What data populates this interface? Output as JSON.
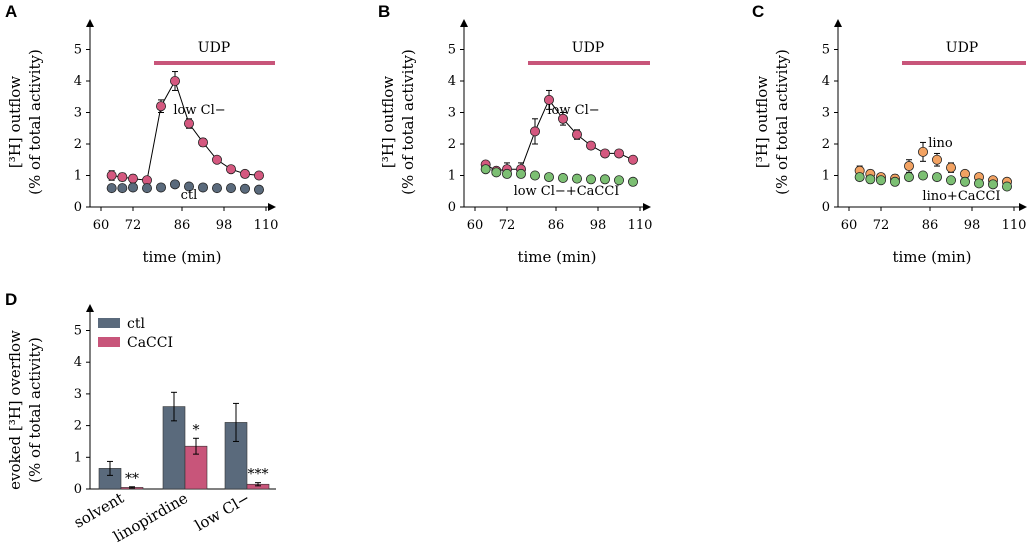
{
  "chart_data": [
    {
      "panel": "A",
      "type": "line",
      "xlabel": "time (min)",
      "ylabel_line1": "[³H] outflow",
      "ylabel_line2": "(% of total activity)",
      "x_ticks": [
        "60",
        "72",
        "86",
        "98",
        "110"
      ],
      "y_ticks": [
        "0",
        "1",
        "2",
        "3",
        "4",
        "5"
      ],
      "xlim": [
        58,
        114
      ],
      "ylim": [
        0,
        5.5
      ],
      "bar_label": "UDP",
      "bar_range": [
        76,
        114
      ],
      "bar_color": "#c8557a",
      "series": [
        {
          "name": "low Cl−",
          "color": "#d4587f",
          "x": [
            64,
            68,
            72,
            76,
            80,
            84,
            88,
            92,
            96,
            100,
            104,
            108
          ],
          "y": [
            1.0,
            0.95,
            0.9,
            0.85,
            3.2,
            4.0,
            2.65,
            2.05,
            1.5,
            1.2,
            1.05,
            1.0
          ],
          "err": [
            0.15,
            0.12,
            0.12,
            0.1,
            0.2,
            0.3,
            0.15,
            0.12,
            0.1,
            0.1,
            0.1,
            0.1
          ]
        },
        {
          "name": "ctl",
          "color": "#5a6a7c",
          "x": [
            64,
            68,
            72,
            76,
            80,
            84,
            88,
            92,
            96,
            100,
            104,
            108
          ],
          "y": [
            0.6,
            0.6,
            0.62,
            0.6,
            0.62,
            0.72,
            0.65,
            0.62,
            0.6,
            0.6,
            0.58,
            0.55
          ],
          "err": [
            0.05,
            0.05,
            0.05,
            0.05,
            0.05,
            0.05,
            0.05,
            0.05,
            0.05,
            0.05,
            0.05,
            0.05
          ]
        }
      ],
      "annotations": [
        {
          "text": "low Cl−",
          "x": 91,
          "y": 2.95
        },
        {
          "text": "ctl",
          "x": 88,
          "y": 0.25
        }
      ]
    },
    {
      "panel": "B",
      "type": "line",
      "xlabel": "time (min)",
      "ylabel_line1": "[³H] outflow",
      "ylabel_line2": "(% of total activity)",
      "x_ticks": [
        "60",
        "72",
        "86",
        "98",
        "110"
      ],
      "y_ticks": [
        "0",
        "1",
        "2",
        "3",
        "4",
        "5"
      ],
      "xlim": [
        58,
        114
      ],
      "ylim": [
        0,
        5.5
      ],
      "bar_label": "UDP",
      "bar_range": [
        76,
        114
      ],
      "bar_color": "#c8557a",
      "series": [
        {
          "name": "low Cl−",
          "color": "#d4587f",
          "x": [
            64,
            68,
            72,
            76,
            80,
            84,
            88,
            92,
            96,
            100,
            104,
            108
          ],
          "y": [
            1.35,
            1.15,
            1.2,
            1.2,
            2.4,
            3.4,
            2.8,
            2.3,
            1.95,
            1.7,
            1.7,
            1.5
          ],
          "err": [
            0.1,
            0.1,
            0.2,
            0.2,
            0.4,
            0.3,
            0.2,
            0.15,
            0.1,
            0.1,
            0.1,
            0.08
          ]
        },
        {
          "name": "low Cl−+CaCCI",
          "color": "#7cbf73",
          "x": [
            64,
            68,
            72,
            76,
            80,
            84,
            88,
            92,
            96,
            100,
            104,
            108
          ],
          "y": [
            1.2,
            1.1,
            1.05,
            1.05,
            1.0,
            0.95,
            0.92,
            0.9,
            0.88,
            0.88,
            0.85,
            0.8
          ],
          "err": [
            0.1,
            0.1,
            0.1,
            0.1,
            0.08,
            0.08,
            0.08,
            0.08,
            0.08,
            0.08,
            0.08,
            0.08
          ]
        }
      ],
      "annotations": [
        {
          "text": "low Cl−",
          "x": 91,
          "y": 2.95
        },
        {
          "text": "low Cl−+CaCCI",
          "x": 89,
          "y": 0.38
        }
      ]
    },
    {
      "panel": "C",
      "type": "line",
      "xlabel": "time (min)",
      "ylabel_line1": "[³H] outflow",
      "ylabel_line2": "(% of total activity)",
      "x_ticks": [
        "60",
        "72",
        "86",
        "98",
        "110"
      ],
      "y_ticks": [
        "0",
        "1",
        "2",
        "3",
        "4",
        "5"
      ],
      "xlim": [
        58,
        114
      ],
      "ylim": [
        0,
        5.5
      ],
      "bar_label": "UDP",
      "bar_range": [
        76,
        114
      ],
      "bar_color": "#c8557a",
      "series": [
        {
          "name": "lino",
          "color": "#f2a262",
          "x": [
            64,
            68,
            72,
            76,
            80,
            84,
            88,
            92,
            96,
            100,
            104,
            108
          ],
          "y": [
            1.15,
            1.05,
            0.95,
            0.9,
            1.3,
            1.75,
            1.5,
            1.25,
            1.05,
            0.95,
            0.85,
            0.8
          ],
          "err": [
            0.15,
            0.12,
            0.1,
            0.12,
            0.2,
            0.3,
            0.2,
            0.15,
            0.1,
            0.1,
            0.08,
            0.08
          ]
        },
        {
          "name": "lino+CaCCI",
          "color": "#7cbf73",
          "x": [
            64,
            68,
            72,
            76,
            80,
            84,
            88,
            92,
            96,
            100,
            104,
            108
          ],
          "y": [
            0.95,
            0.88,
            0.85,
            0.8,
            0.95,
            1.0,
            0.95,
            0.85,
            0.8,
            0.75,
            0.72,
            0.65
          ],
          "err": [
            0.1,
            0.1,
            0.1,
            0.1,
            0.1,
            0.1,
            0.1,
            0.08,
            0.08,
            0.08,
            0.08,
            0.08
          ]
        }
      ],
      "annotations": [
        {
          "text": "lino",
          "x": 89,
          "y": 1.9
        },
        {
          "text": "lino+CaCCI",
          "x": 95,
          "y": 0.22
        }
      ]
    },
    {
      "panel": "D",
      "type": "bar",
      "ylabel_line1": "evoked [³H] overflow",
      "ylabel_line2": "(% of total activity)",
      "categories": [
        "solvent",
        "linopirdine",
        "low Cl−"
      ],
      "y_ticks": [
        "0",
        "1",
        "2",
        "3",
        "4",
        "5"
      ],
      "ylim": [
        0,
        5.5
      ],
      "series": [
        {
          "name": "ctl",
          "color": "#5a6a7c",
          "values": [
            0.65,
            2.6,
            2.1
          ],
          "err": [
            0.22,
            0.45,
            0.6
          ]
        },
        {
          "name": "CaCCI",
          "color": "#c8557a",
          "values": [
            0.05,
            1.35,
            0.15
          ],
          "err": [
            0.02,
            0.25,
            0.05
          ]
        }
      ],
      "significance": [
        "**",
        "*",
        "***"
      ],
      "legend_position": "top-left"
    }
  ]
}
